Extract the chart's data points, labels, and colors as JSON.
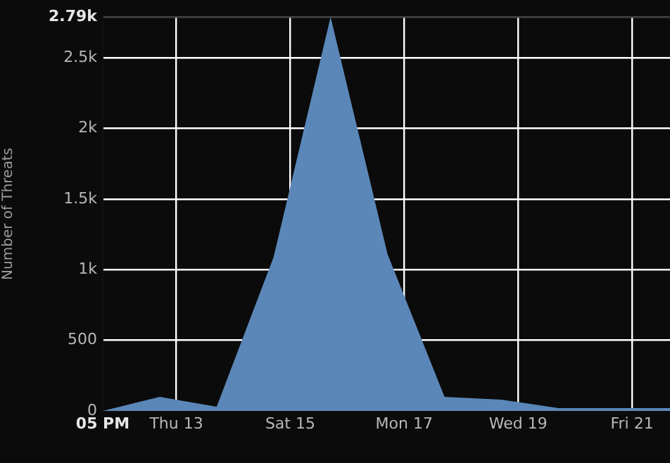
{
  "chart_data": {
    "type": "area",
    "ylabel": "Number of Threats",
    "x": [
      "--03-11T17:00",
      "--03-12T17:00",
      "--03-13T17:00",
      "--03-14T17:00",
      "--03-15T17:00",
      "--03-16T17:00",
      "--03-17T17:00",
      "--03-18T17:00",
      "--03-19T17:00",
      "--03-20T17:00",
      "--03-21T16:00"
    ],
    "values": [
      0,
      100,
      30,
      1090,
      2790,
      1110,
      100,
      80,
      20,
      20,
      20
    ],
    "color": "#5b87b8",
    "xlim": [
      "--03-11T17:00",
      "--03-21T16:00"
    ],
    "xticks": [
      {
        "value": "--03-11T17:00",
        "label": "05 PM"
      },
      {
        "value": "--03-13",
        "label": "Thu 13"
      },
      {
        "value": "--03-15",
        "label": "Sat 15"
      },
      {
        "value": "--03-17",
        "label": "Mon 17"
      },
      {
        "value": "--03-19",
        "label": "Wed 19"
      },
      {
        "value": "--03-21",
        "label": "Fri 21"
      }
    ],
    "ylim": [
      0,
      2790
    ],
    "yticks": [
      0,
      500,
      {
        "value": 1000,
        "label": "1k"
      },
      {
        "value": 1500,
        "label": "1.5k"
      },
      {
        "value": 2000,
        "label": "2k"
      },
      {
        "value": 2500,
        "label": "2.5k"
      },
      {
        "value": 2790,
        "label": "2.79k"
      }
    ],
    "grid": true,
    "marker": "none"
  }
}
